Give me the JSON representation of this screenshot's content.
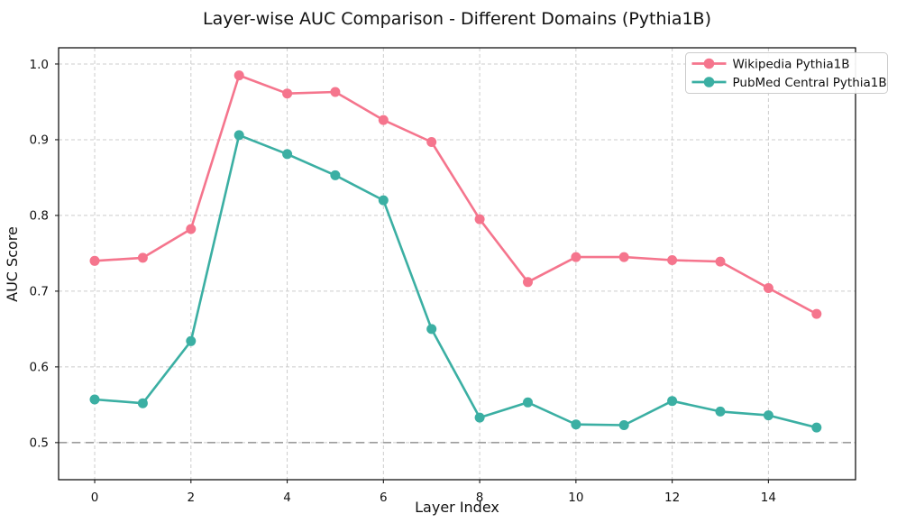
{
  "chart": {
    "title": "Layer-wise AUC Comparison - Different Domains (Pythia1B)",
    "xlabel": "Layer Index",
    "ylabel": "AUC Score"
  },
  "chart_data": {
    "type": "line",
    "x": [
      0,
      1,
      2,
      3,
      4,
      5,
      6,
      7,
      8,
      9,
      10,
      11,
      12,
      13,
      14,
      15
    ],
    "series": [
      {
        "name": "Wikipedia Pythia1B",
        "color": "#f5758d",
        "values": [
          0.74,
          0.744,
          0.782,
          0.985,
          0.961,
          0.963,
          0.926,
          0.897,
          0.795,
          0.712,
          0.745,
          0.745,
          0.741,
          0.739,
          0.704,
          0.67
        ]
      },
      {
        "name": "PubMed Central Pythia1B",
        "color": "#3bafa3",
        "values": [
          0.557,
          0.552,
          0.634,
          0.906,
          0.881,
          0.853,
          0.82,
          0.65,
          0.533,
          0.553,
          0.524,
          0.523,
          0.555,
          0.541,
          0.536,
          0.52
        ]
      }
    ],
    "xticks": [
      0,
      2,
      4,
      6,
      8,
      10,
      12,
      14
    ],
    "xtick_labels": [
      "0",
      "2",
      "4",
      "6",
      "8",
      "10",
      "12",
      "14"
    ],
    "yticks": [
      0.5,
      0.6,
      0.7,
      0.8,
      0.9,
      1.0
    ],
    "ytick_labels": [
      "0.5",
      "0.6",
      "0.7",
      "0.8",
      "0.9",
      "1.0"
    ],
    "xlim": [
      -0.75,
      15.81
    ],
    "ylim": [
      0.451,
      1.0214
    ],
    "grid": true,
    "grid_color": "#cccccc",
    "baseline": {
      "y": 0.5,
      "color": "#9c9c9c"
    },
    "spine_color": "#000000",
    "legend_position": "upper right"
  }
}
